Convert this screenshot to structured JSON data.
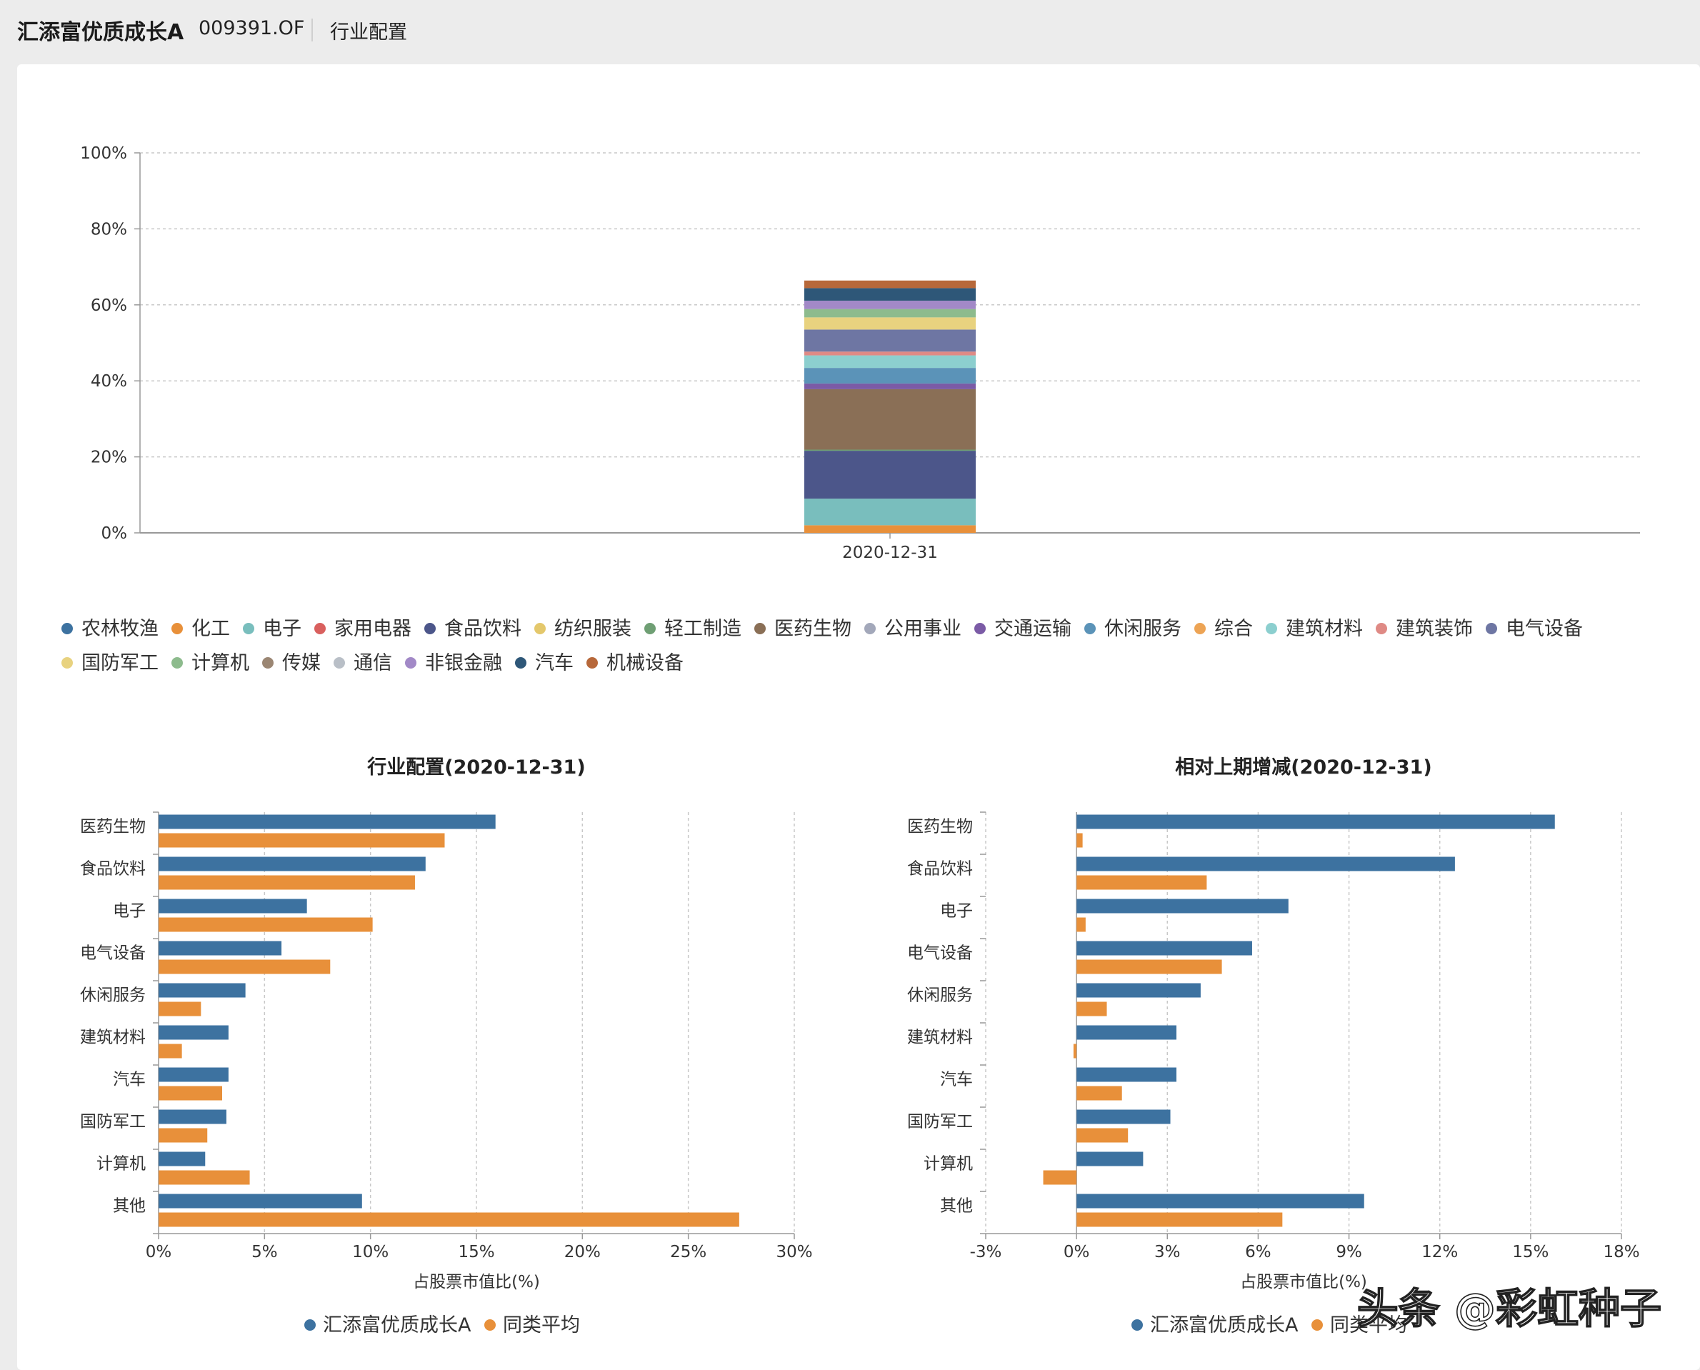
{
  "header": {
    "fund_name": "汇添富优质成长A",
    "fund_code": "009391.OF",
    "section": "行业配置"
  },
  "colors": {
    "fund": "#3d72a0",
    "peer": "#e8903a",
    "grid": "#c8c8c8",
    "axis": "#999999"
  },
  "chart_data": [
    {
      "type": "bar",
      "stacked": true,
      "categories": [
        "2020-12-31"
      ],
      "y_tick_labels": [
        "0%",
        "20%",
        "40%",
        "60%",
        "80%",
        "100%"
      ],
      "ylim": [
        0,
        100
      ],
      "grid": true,
      "legend_position": "bottom",
      "series": [
        {
          "name": "农林牧渔",
          "values": [
            0.0
          ],
          "color": "#3d72a0"
        },
        {
          "name": "化工",
          "values": [
            2.0
          ],
          "color": "#e8903a"
        },
        {
          "name": "电子",
          "values": [
            7.0
          ],
          "color": "#79bebd"
        },
        {
          "name": "家用电器",
          "values": [
            0.0
          ],
          "color": "#d9605e"
        },
        {
          "name": "食品饮料",
          "values": [
            12.6
          ],
          "color": "#4c568a"
        },
        {
          "name": "纺织服装",
          "values": [
            0.0
          ],
          "color": "#e4c86c"
        },
        {
          "name": "轻工制造",
          "values": [
            0.3
          ],
          "color": "#6f9f74"
        },
        {
          "name": "医药生物",
          "values": [
            15.9
          ],
          "color": "#8a6f56"
        },
        {
          "name": "公用事业",
          "values": [
            0.0
          ],
          "color": "#a3a8ba"
        },
        {
          "name": "交通运输",
          "values": [
            1.5
          ],
          "color": "#7b5ba6"
        },
        {
          "name": "休闲服务",
          "values": [
            4.1
          ],
          "color": "#5b93b8"
        },
        {
          "name": "综合",
          "values": [
            0.0
          ],
          "color": "#eda455"
        },
        {
          "name": "建筑材料",
          "values": [
            3.3
          ],
          "color": "#8ccfcf"
        },
        {
          "name": "建筑装饰",
          "values": [
            1.0
          ],
          "color": "#df8a85"
        },
        {
          "name": "电气设备",
          "values": [
            5.8
          ],
          "color": "#6e76a3"
        },
        {
          "name": "国防军工",
          "values": [
            3.2
          ],
          "color": "#e8d27f"
        },
        {
          "name": "计算机",
          "values": [
            2.2
          ],
          "color": "#8dbb8d"
        },
        {
          "name": "传媒",
          "values": [
            0.0
          ],
          "color": "#9b8673"
        },
        {
          "name": "通信",
          "values": [
            0.0
          ],
          "color": "#b9bfc7"
        },
        {
          "name": "非银金融",
          "values": [
            2.2
          ],
          "color": "#a289c7"
        },
        {
          "name": "汽车",
          "values": [
            3.3
          ],
          "color": "#2e5778"
        },
        {
          "name": "机械设备",
          "values": [
            2.0
          ],
          "color": "#b7683a"
        }
      ]
    },
    {
      "type": "bar",
      "orientation": "horizontal",
      "title": "行业配置(2020-12-31)",
      "xlabel": "占股票市值比(%)",
      "xlim": [
        0,
        30
      ],
      "x_tick_labels": [
        "0%",
        "5%",
        "10%",
        "15%",
        "20%",
        "25%",
        "30%"
      ],
      "categories": [
        "医药生物",
        "食品饮料",
        "电子",
        "电气设备",
        "休闲服务",
        "建筑材料",
        "汽车",
        "国防军工",
        "计算机",
        "其他"
      ],
      "series": [
        {
          "name": "汇添富优质成长A",
          "values": [
            15.9,
            12.6,
            7.0,
            5.8,
            4.1,
            3.3,
            3.3,
            3.2,
            2.2,
            9.6
          ]
        },
        {
          "name": "同类平均",
          "values": [
            13.5,
            12.1,
            10.1,
            8.1,
            2.0,
            1.1,
            3.0,
            2.3,
            4.3,
            27.4
          ]
        }
      ],
      "grid": true,
      "legend_position": "bottom"
    },
    {
      "type": "bar",
      "orientation": "horizontal",
      "title": "相对上期增减(2020-12-31)",
      "xlabel": "占股票市值比(%)",
      "xlim": [
        -3,
        18
      ],
      "x_tick_labels": [
        "-3%",
        "0%",
        "3%",
        "6%",
        "9%",
        "12%",
        "15%",
        "18%"
      ],
      "categories": [
        "医药生物",
        "食品饮料",
        "电子",
        "电气设备",
        "休闲服务",
        "建筑材料",
        "汽车",
        "国防军工",
        "计算机",
        "其他"
      ],
      "series": [
        {
          "name": "汇添富优质成长A",
          "values": [
            15.8,
            12.5,
            7.0,
            5.8,
            4.1,
            3.3,
            3.3,
            3.1,
            2.2,
            9.5
          ]
        },
        {
          "name": "同类平均",
          "values": [
            0.2,
            4.3,
            0.3,
            4.8,
            1.0,
            -0.1,
            1.5,
            1.7,
            -1.1,
            6.8
          ]
        }
      ],
      "grid": true,
      "legend_position": "bottom"
    }
  ],
  "watermark": "头条 @彩虹种子"
}
